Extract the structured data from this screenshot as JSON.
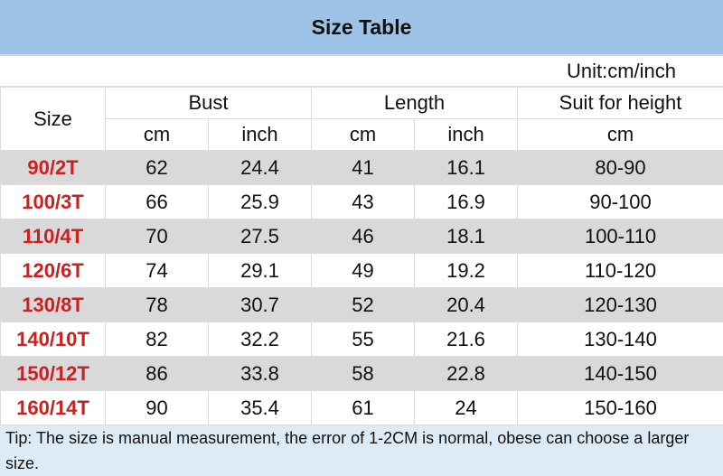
{
  "title": "Size Table",
  "unit": "Unit:cm/inch",
  "headers": {
    "size": "Size",
    "bust": "Bust",
    "length": "Length",
    "height": "Suit for height",
    "cm": "cm",
    "inch": "inch"
  },
  "rows": [
    [
      "90/2T",
      "62",
      "24.4",
      "41",
      "16.1",
      "80-90"
    ],
    [
      "100/3T",
      "66",
      "25.9",
      "43",
      "16.9",
      "90-100"
    ],
    [
      "110/4T",
      "70",
      "27.5",
      "46",
      "18.1",
      "100-110"
    ],
    [
      "120/6T",
      "74",
      "29.1",
      "49",
      "19.2",
      "110-120"
    ],
    [
      "130/8T",
      "78",
      "30.7",
      "52",
      "20.4",
      "120-130"
    ],
    [
      "140/10T",
      "82",
      "32.2",
      "55",
      "21.6",
      "130-140"
    ],
    [
      "150/12T",
      "86",
      "33.8",
      "58",
      "22.8",
      "140-150"
    ],
    [
      "160/14T",
      "90",
      "35.4",
      "61",
      "24",
      "150-160"
    ]
  ],
  "tip": "Tip: The size is manual measurement, the error of 1-2CM is normal, obese can choose a larger size.",
  "colors": {
    "header": "#9dc3e6",
    "stripe": "#d9d9d9",
    "size_text": "#cc1f1f",
    "tip": "#ddebf7"
  }
}
